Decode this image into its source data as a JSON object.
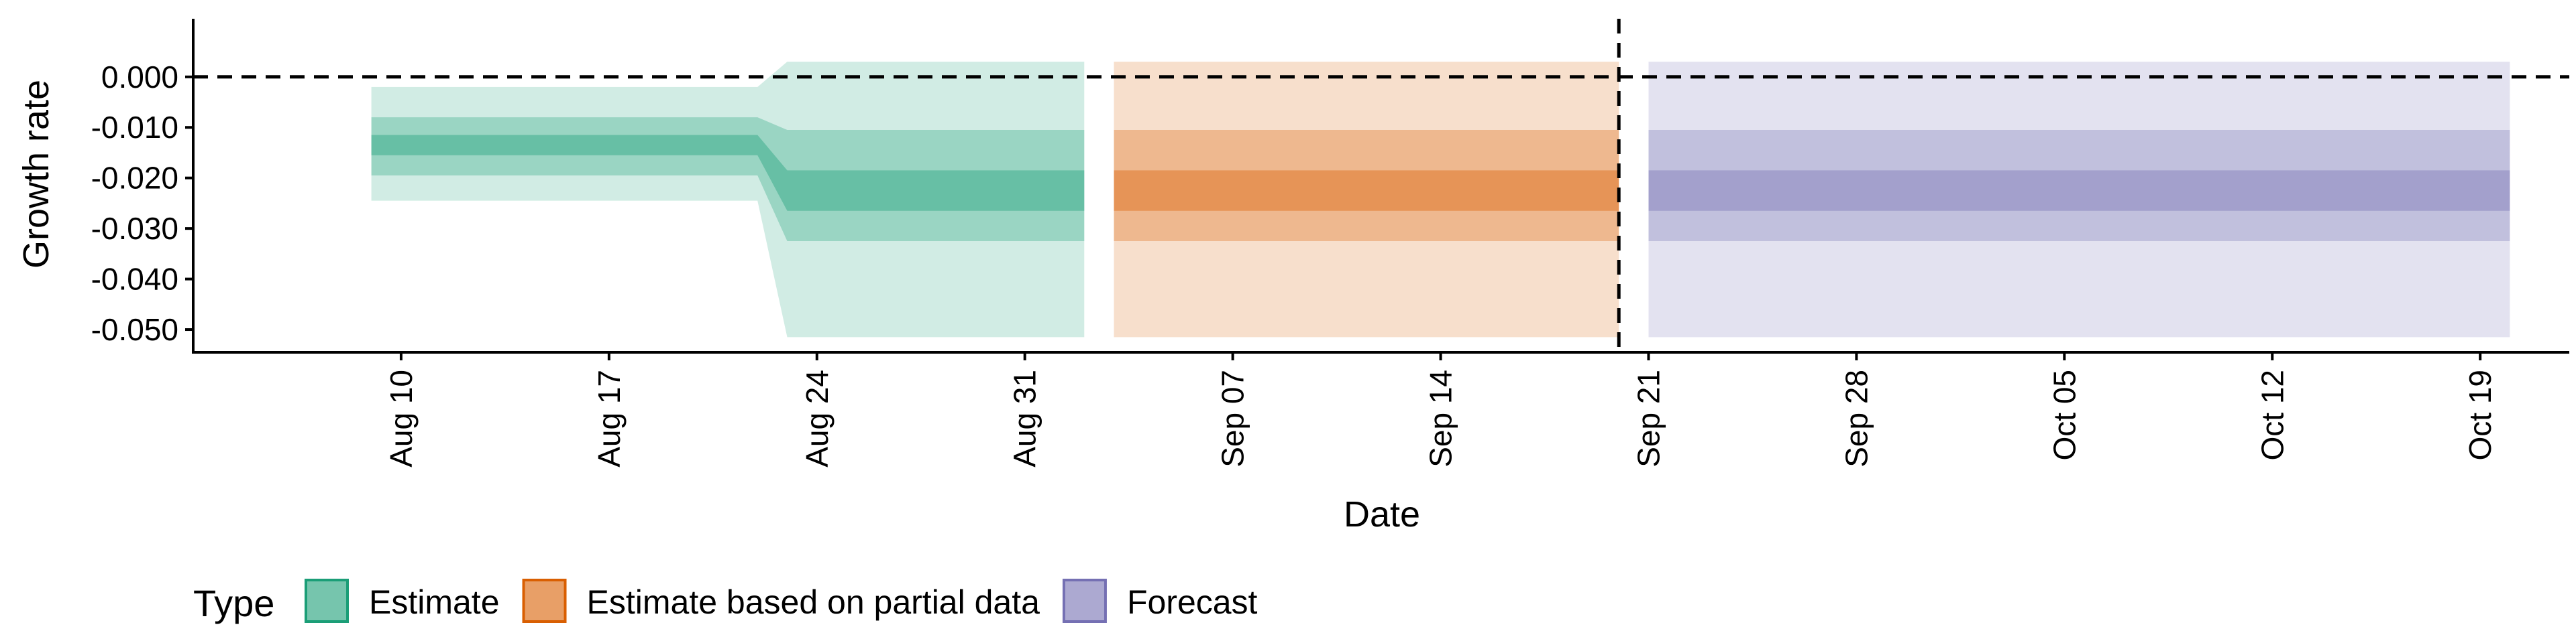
{
  "chart_data": {
    "type": "area",
    "xlabel": "Date",
    "ylabel": "Growth rate",
    "x_range": [
      "2020-08-03",
      "2020-10-22"
    ],
    "ylim": [
      -0.0545,
      0.0115
    ],
    "y_ticks": [
      0.0,
      -0.01,
      -0.02,
      -0.03,
      -0.04,
      -0.05
    ],
    "y_tick_labels": [
      "0.000",
      "-0.010",
      "-0.020",
      "-0.030",
      "-0.040",
      "-0.050"
    ],
    "x_ticks": [
      "2020-08-10",
      "2020-08-17",
      "2020-08-24",
      "2020-08-31",
      "2020-09-07",
      "2020-09-14",
      "2020-09-21",
      "2020-09-28",
      "2020-10-05",
      "2020-10-12",
      "2020-10-19"
    ],
    "x_tick_labels": [
      "Aug 10",
      "Aug 17",
      "Aug 24",
      "Aug 31",
      "Sep 07",
      "Sep 14",
      "Sep 21",
      "Sep 28",
      "Oct 05",
      "Oct 12",
      "Oct 19"
    ],
    "hline": 0.0,
    "vline": "2020-09-20",
    "legend": {
      "title": "Type",
      "position": "bottom-left",
      "items": [
        "Estimate",
        "Estimate based on partial data",
        "Forecast"
      ]
    },
    "series": [
      {
        "name": "Estimate",
        "color": "#1b9e77",
        "x": [
          "2020-08-09",
          "2020-08-21",
          "2020-08-22",
          "2020-08-23",
          "2020-09-02"
        ],
        "bands": [
          {
            "lower": [
              -0.0245,
              -0.0245,
              -0.0245,
              -0.0515,
              -0.0515
            ],
            "upper": [
              -0.002,
              -0.002,
              -0.002,
              0.003,
              0.003
            ],
            "opacity": 0.2
          },
          {
            "lower": [
              -0.0195,
              -0.0195,
              -0.0195,
              -0.0325,
              -0.0325
            ],
            "upper": [
              -0.008,
              -0.008,
              -0.008,
              -0.0105,
              -0.0105
            ],
            "opacity": 0.3
          },
          {
            "lower": [
              -0.0155,
              -0.0155,
              -0.0155,
              -0.0265,
              -0.0265
            ],
            "upper": [
              -0.0115,
              -0.0115,
              -0.0115,
              -0.0185,
              -0.0185
            ],
            "opacity": 0.4
          }
        ]
      },
      {
        "name": "Estimate based on partial data",
        "color": "#d95f02",
        "x": [
          "2020-09-03",
          "2020-09-20"
        ],
        "bands": [
          {
            "lower": [
              -0.0515,
              -0.0515
            ],
            "upper": [
              0.003,
              0.003
            ],
            "opacity": 0.2
          },
          {
            "lower": [
              -0.0325,
              -0.0325
            ],
            "upper": [
              -0.0105,
              -0.0105
            ],
            "opacity": 0.3
          },
          {
            "lower": [
              -0.0265,
              -0.0265
            ],
            "upper": [
              -0.0185,
              -0.0185
            ],
            "opacity": 0.4
          }
        ]
      },
      {
        "name": "Forecast",
        "color": "#7570b3",
        "x": [
          "2020-09-21",
          "2020-10-20"
        ],
        "bands": [
          {
            "lower": [
              -0.0515,
              -0.0515
            ],
            "upper": [
              0.003,
              0.003
            ],
            "opacity": 0.2
          },
          {
            "lower": [
              -0.0325,
              -0.0325
            ],
            "upper": [
              -0.0105,
              -0.0105
            ],
            "opacity": 0.3
          },
          {
            "lower": [
              -0.0265,
              -0.0265
            ],
            "upper": [
              -0.0185,
              -0.0185
            ],
            "opacity": 0.4
          }
        ]
      }
    ]
  }
}
